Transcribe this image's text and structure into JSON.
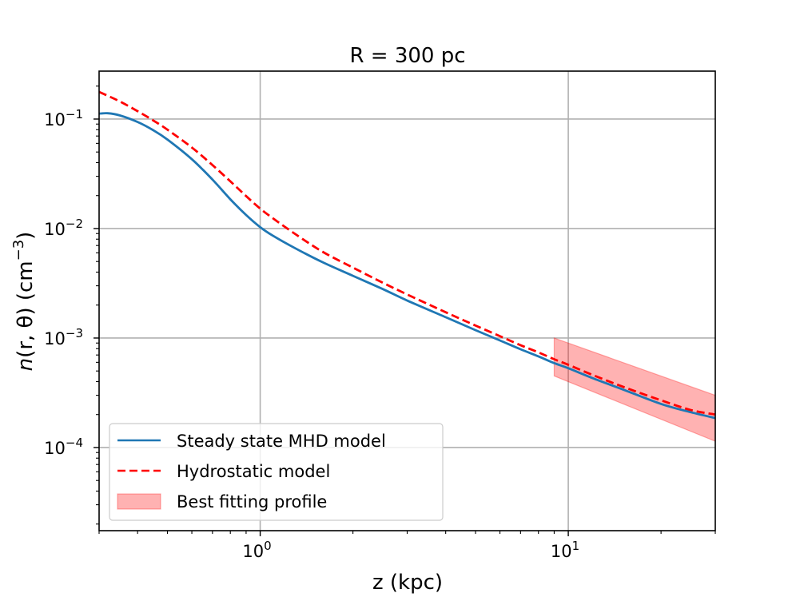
{
  "chart_data": {
    "type": "line",
    "title": "R = 300 pc",
    "xlabel": "z (kpc)",
    "ylabel": "n(r, θ) (cm⁻³)",
    "ylabel_parts": {
      "func": "n",
      "args": "(r, θ)",
      "unit_open": " (cm",
      "unit_exp": "−3",
      "unit_close": ")"
    },
    "xscale": "log",
    "yscale": "log",
    "xlim": [
      0.3,
      30
    ],
    "ylim": [
      1.74e-05,
      0.274
    ],
    "grid": true,
    "x_ticks": [
      {
        "value": 1,
        "base": "10",
        "exp": "0"
      },
      {
        "value": 10,
        "base": "10",
        "exp": "1"
      }
    ],
    "y_ticks": [
      {
        "value": 0.1,
        "base": "10",
        "exp": "−1"
      },
      {
        "value": 0.01,
        "base": "10",
        "exp": "−2"
      },
      {
        "value": 0.001,
        "base": "10",
        "exp": "−3"
      },
      {
        "value": 0.0001,
        "base": "10",
        "exp": "−4"
      }
    ],
    "series": [
      {
        "name": "Steady state MHD model",
        "style": "solid",
        "color": "#1f77b4",
        "x": [
          0.3,
          0.32,
          0.35,
          0.4,
          0.45,
          0.5,
          0.6,
          0.7,
          0.8,
          0.9,
          1.0,
          1.1,
          1.3,
          1.6,
          2.0,
          2.5,
          3.0,
          4.0,
          5.0,
          6.0,
          7.0,
          8.0,
          9.0,
          10.0,
          12.0,
          15.0,
          20.0,
          25.0,
          30.0
        ],
        "values": [
          0.112,
          0.113,
          0.108,
          0.094,
          0.079,
          0.065,
          0.043,
          0.028,
          0.0185,
          0.0133,
          0.0103,
          0.0086,
          0.0066,
          0.0049,
          0.0037,
          0.0028,
          0.0022,
          0.00155,
          0.00118,
          0.00095,
          0.00079,
          0.00068,
          0.00059,
          0.00053,
          0.00043,
          0.00034,
          0.00025,
          0.00021,
          0.000186
        ]
      },
      {
        "name": "Hydrostatic model",
        "style": "dashed",
        "color": "#ff0000",
        "x": [
          0.3,
          0.35,
          0.4,
          0.45,
          0.5,
          0.6,
          0.7,
          0.8,
          0.9,
          1.0,
          1.1,
          1.3,
          1.6,
          2.0,
          2.5,
          3.0,
          4.0,
          5.0,
          6.0,
          7.0,
          8.0,
          9.0,
          10.0,
          12.0,
          15.0,
          20.0,
          25.0,
          30.0
        ],
        "values": [
          0.177,
          0.145,
          0.118,
          0.097,
          0.08,
          0.055,
          0.038,
          0.027,
          0.0198,
          0.0152,
          0.0124,
          0.0089,
          0.0061,
          0.0044,
          0.0032,
          0.0025,
          0.00172,
          0.0013,
          0.00104,
          0.00086,
          0.00074,
          0.00064,
          0.00057,
          0.00046,
          0.00036,
          0.00027,
          0.00022,
          0.0002
        ]
      }
    ],
    "band": {
      "name": "Best fitting profile",
      "color": "#ff0000",
      "opacity": 0.3,
      "x": [
        9.0,
        30.0
      ],
      "upper": [
        0.001,
        0.0003
      ],
      "lower": [
        0.00045,
        0.000114
      ]
    },
    "legend": {
      "placement": "lower-left",
      "entries": [
        "Steady state MHD model",
        "Hydrostatic model",
        "Best fitting profile"
      ]
    }
  }
}
